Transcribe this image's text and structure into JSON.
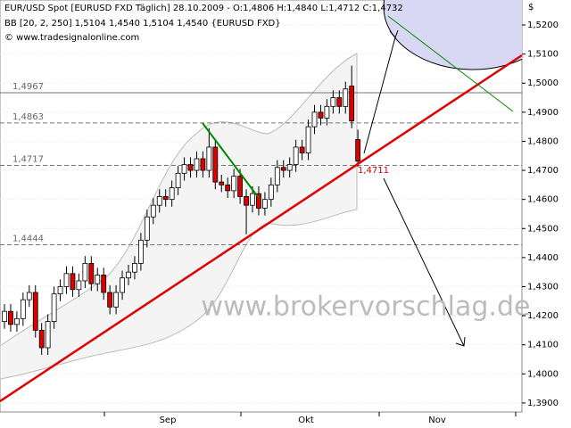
{
  "chart_data": {
    "type": "candlestick",
    "header": [
      "EUR/USD Spot [EURUSD FXD  Täglich] 28.10.2009 - O:1,4806 H:1,4840 L:1,4712 C:1,4732",
      "BB [20, 2, 250] 1,5104 1,4540 1,5104 1,4540 {EURUSD FXD}",
      "© www.tradesignalonline.com"
    ],
    "watermark": "www.brokervorschlag.de",
    "currency": "$",
    "months": [
      "Sep",
      "Okt",
      "Nov"
    ],
    "open": [
      1.418,
      1.4215,
      1.417,
      1.419,
      1.4255,
      1.428,
      1.415,
      1.409,
      1.418,
      1.4275,
      1.43,
      1.4345,
      1.429,
      1.432,
      1.438,
      1.431,
      1.434,
      1.428,
      1.423,
      1.428,
      1.433,
      1.435,
      1.438,
      1.446,
      1.454,
      1.458,
      1.461,
      1.46,
      1.464,
      1.469,
      1.472,
      1.47,
      1.474,
      1.47,
      1.478,
      1.466,
      1.465,
      1.463,
      1.468,
      1.461,
      1.458,
      1.462,
      1.457,
      1.46,
      1.465,
      1.471,
      1.47,
      1.472,
      1.478,
      1.476,
      1.485,
      1.49,
      1.488,
      1.492,
      1.495,
      1.492,
      1.499,
      1.4806
    ],
    "high": [
      1.424,
      1.424,
      1.4215,
      1.428,
      1.4305,
      1.4305,
      1.4175,
      1.4205,
      1.43,
      1.4325,
      1.437,
      1.437,
      1.4345,
      1.4405,
      1.4405,
      1.4365,
      1.4365,
      1.4305,
      1.4305,
      1.4355,
      1.4375,
      1.4405,
      1.4485,
      1.4565,
      1.4605,
      1.4635,
      1.4635,
      1.4665,
      1.4715,
      1.4745,
      1.4745,
      1.4765,
      1.4765,
      1.4845,
      1.4805,
      1.4685,
      1.4675,
      1.4705,
      1.4705,
      1.4635,
      1.4645,
      1.4645,
      1.4625,
      1.4675,
      1.4735,
      1.4735,
      1.4745,
      1.4805,
      1.4805,
      1.4875,
      1.4925,
      1.4925,
      1.4945,
      1.4975,
      1.4975,
      1.5005,
      1.506,
      1.484
    ],
    "low": [
      1.4155,
      1.4145,
      1.4145,
      1.4165,
      1.423,
      1.4125,
      1.4065,
      1.4065,
      1.4155,
      1.425,
      1.4275,
      1.4265,
      1.4265,
      1.4295,
      1.4285,
      1.4285,
      1.4255,
      1.4205,
      1.4205,
      1.4255,
      1.4305,
      1.4325,
      1.4355,
      1.4435,
      1.4515,
      1.4555,
      1.4575,
      1.4575,
      1.4615,
      1.4665,
      1.4675,
      1.4675,
      1.4675,
      1.4675,
      1.4635,
      1.4625,
      1.4605,
      1.4605,
      1.4585,
      1.448,
      1.4555,
      1.4545,
      1.4545,
      1.4575,
      1.4625,
      1.4675,
      1.4675,
      1.4695,
      1.4735,
      1.4735,
      1.4825,
      1.4855,
      1.4855,
      1.4895,
      1.4895,
      1.4895,
      1.4845,
      1.4712
    ],
    "close": [
      1.4215,
      1.417,
      1.419,
      1.4255,
      1.428,
      1.415,
      1.409,
      1.418,
      1.4275,
      1.43,
      1.4345,
      1.429,
      1.432,
      1.438,
      1.431,
      1.434,
      1.428,
      1.423,
      1.428,
      1.433,
      1.435,
      1.438,
      1.446,
      1.454,
      1.458,
      1.461,
      1.46,
      1.464,
      1.469,
      1.472,
      1.47,
      1.474,
      1.47,
      1.478,
      1.466,
      1.465,
      1.463,
      1.468,
      1.461,
      1.458,
      1.462,
      1.457,
      1.46,
      1.465,
      1.471,
      1.47,
      1.472,
      1.478,
      1.476,
      1.485,
      1.49,
      1.488,
      1.492,
      1.495,
      1.492,
      1.498,
      1.487,
      1.4732
    ],
    "up_color": "#ffffff",
    "down_color": "#dd0000",
    "levels": [
      {
        "value": 1.4967,
        "label": "1,4967"
      },
      {
        "value": 1.4863,
        "label": "1,4863"
      },
      {
        "value": 1.4717,
        "label": "1,4717"
      },
      {
        "value": 1.4444,
        "label": "1,4444"
      }
    ],
    "annotation": "1,4711",
    "ylim": [
      1.3869,
      1.5286
    ],
    "yticks": [
      {
        "value": 1.39,
        "label": "1,3900"
      },
      {
        "value": 1.4,
        "label": "1,4000"
      },
      {
        "value": 1.41,
        "label": "1,4100"
      },
      {
        "value": 1.42,
        "label": "1,4200"
      },
      {
        "value": 1.43,
        "label": "1,4300"
      },
      {
        "value": 1.44,
        "label": "1,4400"
      },
      {
        "value": 1.45,
        "label": "1,4500"
      },
      {
        "value": 1.46,
        "label": "1,4600"
      },
      {
        "value": 1.47,
        "label": "1,4700"
      },
      {
        "value": 1.48,
        "label": "1,4800"
      },
      {
        "value": 1.49,
        "label": "1,4900"
      },
      {
        "value": 1.5,
        "label": "1,5000"
      },
      {
        "value": 1.51,
        "label": "1,5100"
      },
      {
        "value": 1.52,
        "label": "1,5200"
      }
    ],
    "grid": true
  }
}
